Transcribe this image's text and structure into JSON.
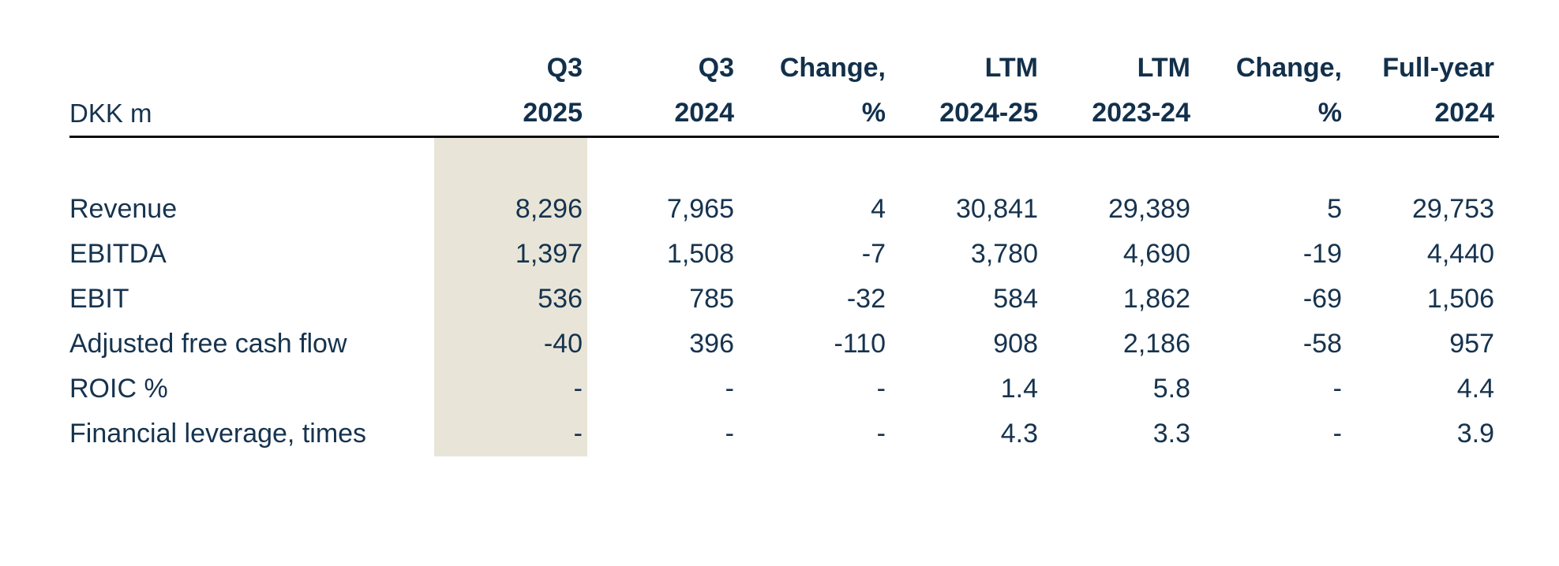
{
  "colors": {
    "text": "#16334e",
    "header_text": "#12304b",
    "highlight_column": "#e8e5d8",
    "divider": "#0b0b0b",
    "background": "#ffffff"
  },
  "table": {
    "unit_label": "DKK m",
    "columns": [
      {
        "line1": "Q3",
        "line2": "2025",
        "highlighted": true
      },
      {
        "line1": "Q3",
        "line2": "2024",
        "highlighted": false
      },
      {
        "line1": "Change,",
        "line2": "%",
        "highlighted": false
      },
      {
        "line1": "LTM",
        "line2": "2024-25",
        "highlighted": false
      },
      {
        "line1": "LTM",
        "line2": "2023-24",
        "highlighted": false
      },
      {
        "line1": "Change,",
        "line2": "%",
        "highlighted": false
      },
      {
        "line1": "Full-year",
        "line2": "2024",
        "highlighted": false
      }
    ],
    "rows": [
      {
        "label": "Revenue",
        "values": [
          "8,296",
          "7,965",
          "4",
          "30,841",
          "29,389",
          "5",
          "29,753"
        ]
      },
      {
        "label": "EBITDA",
        "values": [
          "1,397",
          "1,508",
          "-7",
          "3,780",
          "4,690",
          "-19",
          "4,440"
        ]
      },
      {
        "label": "EBIT",
        "values": [
          "536",
          "785",
          "-32",
          "584",
          "1,862",
          "-69",
          "1,506"
        ]
      },
      {
        "label": "Adjusted free cash flow",
        "values": [
          "-40",
          "396",
          "-110",
          "908",
          "2,186",
          "-58",
          "957"
        ]
      },
      {
        "label": "ROIC %",
        "values": [
          "-",
          "-",
          "-",
          "1.4",
          "5.8",
          "-",
          "4.4"
        ]
      },
      {
        "label": "Financial leverage, times",
        "values": [
          "-",
          "-",
          "-",
          "4.3",
          "3.3",
          "-",
          "3.9"
        ]
      }
    ]
  }
}
